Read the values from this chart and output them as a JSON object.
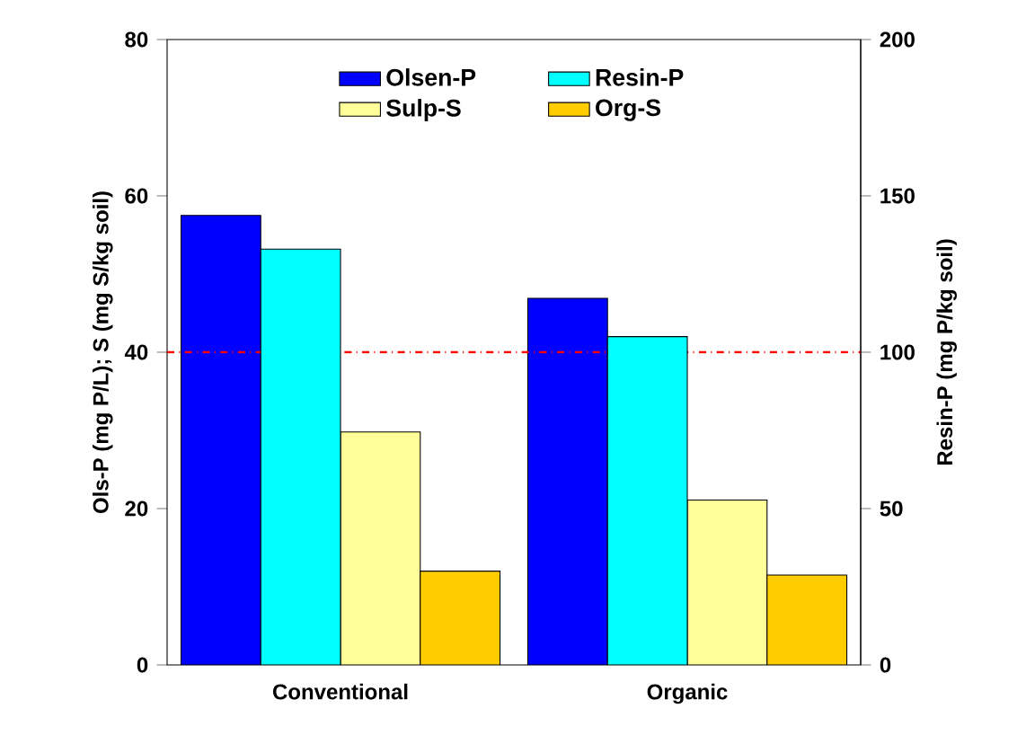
{
  "chart_data": {
    "type": "bar",
    "categories": [
      "Conventional",
      "Organic"
    ],
    "ylabel": "Ols-P (mg P/L); S (mg S/kg soil)",
    "y2label": "Resin-P (mg P/kg soil)",
    "ylim": [
      0,
      80
    ],
    "yticks": [
      0,
      20,
      40,
      60,
      80
    ],
    "y2lim": [
      0,
      200
    ],
    "y2ticks": [
      0,
      50,
      100,
      150,
      200
    ],
    "series": [
      {
        "name": "Olsen-P",
        "color": "#0000ff",
        "values": [
          57.5,
          46.9
        ]
      },
      {
        "name": "Resin-P",
        "color": "#00ffff",
        "values": [
          133,
          105
        ],
        "axis": "y2"
      },
      {
        "name": "Sulp-S",
        "color": "#ffff99",
        "values": [
          29.8,
          21.1
        ]
      },
      {
        "name": "Org-S",
        "color": "#ffcc00",
        "values": [
          12.0,
          11.5
        ]
      }
    ],
    "ref_lines": [
      {
        "axis": "y",
        "value": 40,
        "color": "#ff0000",
        "line_style": "dashdot"
      }
    ],
    "legend": "top",
    "grid": false
  }
}
